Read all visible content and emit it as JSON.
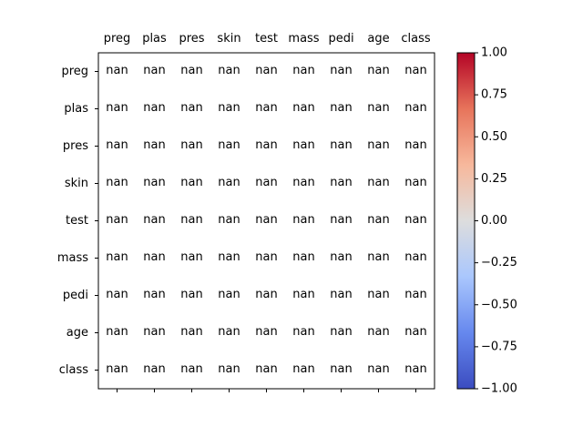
{
  "chart_data": {
    "type": "heatmap",
    "title": "",
    "xlabel": "",
    "ylabel": "",
    "x_labels": [
      "preg",
      "plas",
      "pres",
      "skin",
      "test",
      "mass",
      "pedi",
      "age",
      "class"
    ],
    "y_labels": [
      "preg",
      "plas",
      "pres",
      "skin",
      "test",
      "mass",
      "pedi",
      "age",
      "class"
    ],
    "cell_text": "nan",
    "values": [
      [
        "nan",
        "nan",
        "nan",
        "nan",
        "nan",
        "nan",
        "nan",
        "nan",
        "nan"
      ],
      [
        "nan",
        "nan",
        "nan",
        "nan",
        "nan",
        "nan",
        "nan",
        "nan",
        "nan"
      ],
      [
        "nan",
        "nan",
        "nan",
        "nan",
        "nan",
        "nan",
        "nan",
        "nan",
        "nan"
      ],
      [
        "nan",
        "nan",
        "nan",
        "nan",
        "nan",
        "nan",
        "nan",
        "nan",
        "nan"
      ],
      [
        "nan",
        "nan",
        "nan",
        "nan",
        "nan",
        "nan",
        "nan",
        "nan",
        "nan"
      ],
      [
        "nan",
        "nan",
        "nan",
        "nan",
        "nan",
        "nan",
        "nan",
        "nan",
        "nan"
      ],
      [
        "nan",
        "nan",
        "nan",
        "nan",
        "nan",
        "nan",
        "nan",
        "nan",
        "nan"
      ],
      [
        "nan",
        "nan",
        "nan",
        "nan",
        "nan",
        "nan",
        "nan",
        "nan",
        "nan"
      ],
      [
        "nan",
        "nan",
        "nan",
        "nan",
        "nan",
        "nan",
        "nan",
        "nan",
        "nan"
      ]
    ],
    "colorbar": {
      "colormap": "coolwarm",
      "vmin": -1.0,
      "vmax": 1.0,
      "ticks": [
        1.0,
        0.75,
        0.5,
        0.25,
        0.0,
        -0.25,
        -0.5,
        -0.75,
        -1.0
      ],
      "tick_labels": [
        "1.00",
        "0.75",
        "0.50",
        "0.25",
        "0.00",
        "−0.25",
        "−0.50",
        "−0.75",
        "−1.00"
      ],
      "stops": [
        "#3b4cc0",
        "#6688ee",
        "#aac7fd",
        "#dddddd",
        "#f7b89c",
        "#e7745b",
        "#b40426"
      ]
    },
    "x_ticks_position": "top",
    "grid": false
  }
}
